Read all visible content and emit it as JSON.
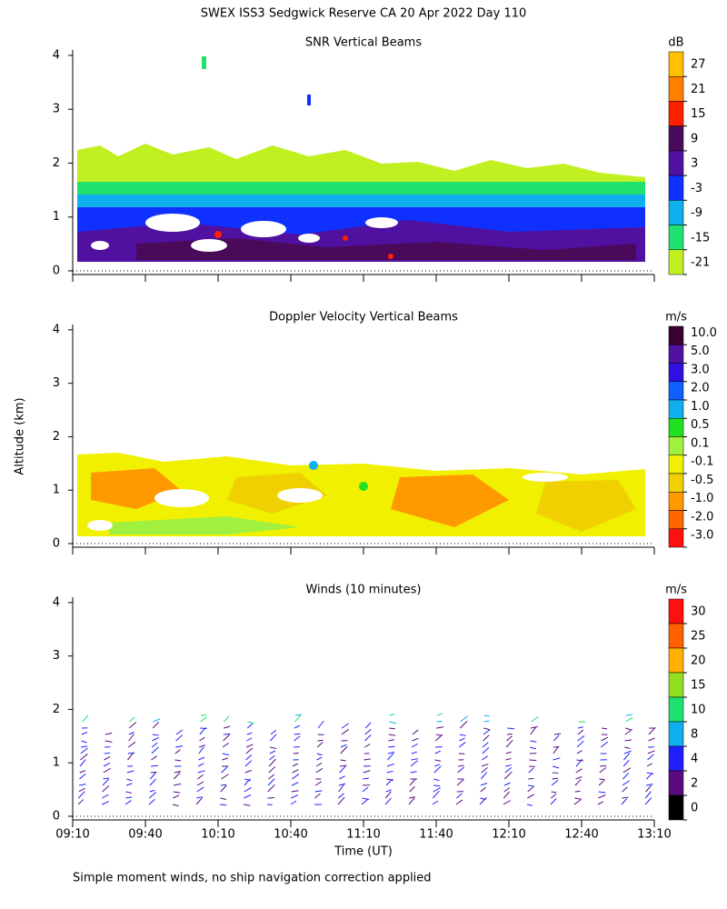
{
  "title": "SWEX ISS3 Sedgwick Reserve CA  20 Apr 2022 Day 110",
  "y_label": "Altitude (km)",
  "x_label": "Time (UT)",
  "footnote": "Simple moment winds, no ship navigation correction applied",
  "chart_data": [
    {
      "type": "contour",
      "title": "SNR Vertical Beams",
      "ylim": [
        0,
        4.1
      ],
      "yticks": [
        0,
        1,
        2,
        3,
        4
      ],
      "xticks": [
        "09:10",
        "09:40",
        "10:10",
        "10:40",
        "11:10",
        "11:40",
        "12:10",
        "12:40",
        "13:10"
      ],
      "show_xtick_labels": false,
      "colorbar": {
        "label": "dB",
        "ticks": [
          27,
          21,
          15,
          9,
          3,
          -3,
          -9,
          -15,
          -21
        ],
        "colors": [
          "#ffc000",
          "#ff8000",
          "#ff2000",
          "#4a0a5a",
          "#5010a0",
          "#1030ff",
          "#10b0f0",
          "#20e070",
          "#c0f020"
        ]
      }
    },
    {
      "type": "contour",
      "title": "Doppler Velocity Vertical Beams",
      "ylim": [
        0,
        4.1
      ],
      "yticks": [
        0,
        1,
        2,
        3,
        4
      ],
      "xticks": [
        "09:10",
        "09:40",
        "10:10",
        "10:40",
        "11:10",
        "11:40",
        "12:10",
        "12:40",
        "13:10"
      ],
      "show_xtick_labels": false,
      "colorbar": {
        "label": "m/s",
        "ticks": [
          {
            "value": 10,
            "label": "10.0"
          },
          {
            "value": 5,
            "label": "5.0"
          },
          {
            "value": 3,
            "label": "3.0"
          },
          {
            "value": 2,
            "label": "2.0"
          },
          {
            "value": 1,
            "label": "1.0"
          },
          0.5,
          0.1,
          -0.1,
          -0.5,
          {
            "value": -1,
            "label": "-1.0"
          },
          {
            "value": -2,
            "label": "-2.0"
          },
          {
            "value": -3,
            "label": "-3.0"
          }
        ],
        "colors": [
          "#3a0030",
          "#5010a0",
          "#3010e0",
          "#1060ff",
          "#10b0f0",
          "#20e020",
          "#a0f040",
          "#f0f000",
          "#f0d000",
          "#ff9900",
          "#ff6600",
          "#ff1010"
        ]
      }
    },
    {
      "type": "barbs",
      "title": "Winds (10 minutes)",
      "ylim": [
        0,
        4.1
      ],
      "yticks": [
        0,
        1,
        2,
        3,
        4
      ],
      "xticks": [
        "09:10",
        "09:40",
        "10:10",
        "10:40",
        "11:10",
        "11:40",
        "12:10",
        "12:40",
        "13:10"
      ],
      "show_xtick_labels": true,
      "colorbar": {
        "label": "m/s",
        "ticks": [
          30,
          25,
          20,
          15,
          10,
          8,
          4,
          2,
          0
        ],
        "colors": [
          "#ff1010",
          "#ff6000",
          "#ffb000",
          "#90e020",
          "#20e070",
          "#10b0f0",
          "#2020ff",
          "#5a0a80",
          "#000000"
        ]
      }
    }
  ]
}
